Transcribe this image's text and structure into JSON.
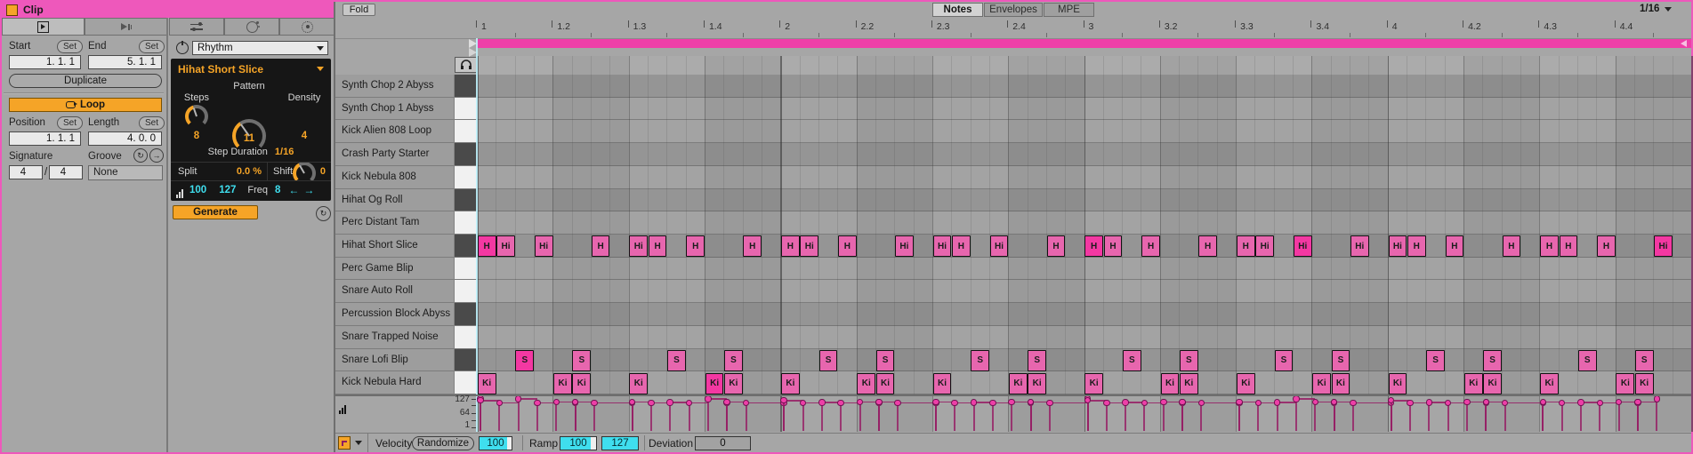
{
  "colors": {
    "orange": "#f5a427",
    "cyan": "#3fdeee",
    "pink_title": "#ee58bb",
    "pink_loop": "#ee3fa8",
    "pink_note": "#e766ae",
    "pink_note_bright": "#f338a2"
  },
  "window": {
    "title": "Clip"
  },
  "left_panel": {
    "start_label": "Start",
    "end_label": "End",
    "set_label": "Set",
    "start_value": "1. 1. 1",
    "end_value": "5. 1. 1",
    "duplicate_label": "Duplicate",
    "loop_label": "Loop",
    "position_label": "Position",
    "length_label": "Length",
    "position_value": "1. 1. 1",
    "length_value": "4. 0. 0",
    "signature_label": "Signature",
    "sig_numerator": "4",
    "sig_separator": "/",
    "sig_denominator": "4",
    "groove_label": "Groove",
    "groove_value": "None"
  },
  "device": {
    "selector_value": "Rhythm",
    "preset_name": "Hihat Short Slice",
    "pattern_label": "Pattern",
    "steps_label": "Steps",
    "steps_value": "8",
    "pattern_value": "11",
    "density_label": "Density",
    "density_value": "4",
    "step_duration_label": "Step Duration",
    "step_duration_value": "1/16",
    "split_label": "Split",
    "split_value": "0.0 %",
    "shift_label": "Shift",
    "shift_value": "0",
    "range_low": "100",
    "range_high": "127",
    "freq_label": "Freq",
    "freq_value": "8",
    "generate_label": "Generate"
  },
  "editor": {
    "fold_label": "Fold",
    "tabs": [
      {
        "label": "Notes",
        "active": true
      },
      {
        "label": "Envelopes",
        "active": false
      },
      {
        "label": "MPE",
        "active": false
      }
    ],
    "grid_resolution": "1/16",
    "ruler_labels": [
      "1",
      "1.2",
      "1.3",
      "1.4",
      "2",
      "2.2",
      "2.3",
      "2.4",
      "3",
      "3.2",
      "3.3",
      "3.4",
      "4",
      "4.2",
      "4.3",
      "4.4"
    ],
    "bars": 4,
    "tracks": [
      {
        "name": "Synth Chop 2 Abyss",
        "key": "dark"
      },
      {
        "name": "Synth Chop 1 Abyss",
        "key": "light"
      },
      {
        "name": "Kick Alien 808 Loop",
        "key": "light"
      },
      {
        "name": "Crash Party Starter",
        "key": "dark"
      },
      {
        "name": "Kick Nebula 808",
        "key": "light"
      },
      {
        "name": "Hihat Og Roll",
        "key": "dark"
      },
      {
        "name": "Perc Distant Tam",
        "key": "light"
      },
      {
        "name": "Hihat Short Slice",
        "key": "dark"
      },
      {
        "name": "Perc Game Blip",
        "key": "light"
      },
      {
        "name": "Snare Auto Roll",
        "key": "light"
      },
      {
        "name": "Percussion Block Abyss",
        "key": "dark"
      },
      {
        "name": "Snare Trapped Noise",
        "key": "light"
      },
      {
        "name": "Snare Lofi Blip",
        "key": "dark"
      },
      {
        "name": "Kick Nebula Hard",
        "key": "light"
      }
    ],
    "patterns": {
      "hihat": {
        "row": 7,
        "steps": [
          0,
          1,
          3,
          6,
          8,
          9,
          11,
          14
        ],
        "labels": [
          [
            "H",
            "Hi",
            "Hi",
            "H",
            "Hi",
            "H",
            "H",
            "H"
          ],
          [
            "H",
            "Hi",
            "H",
            "Hi",
            "Hi",
            "H",
            "Hi",
            "H"
          ],
          [
            "H",
            "H",
            "H",
            "H",
            "H",
            "Hi",
            "Hi",
            "Hi"
          ],
          [
            "Hi",
            "H",
            "H",
            "H",
            "H",
            "H",
            "H",
            "Hi"
          ]
        ],
        "velocities": [
          [
            127,
            110,
            110,
            110,
            110,
            110,
            110,
            110
          ],
          [
            110,
            110,
            110,
            110,
            110,
            110,
            110,
            110
          ],
          [
            127,
            110,
            110,
            110,
            110,
            110,
            127,
            110
          ],
          [
            110,
            110,
            110,
            110,
            110,
            110,
            110,
            127
          ]
        ]
      },
      "snare": {
        "row": 12,
        "steps": [
          2,
          5,
          10,
          13
        ],
        "label": "S",
        "velocities": [
          [
            127,
            112,
            112,
            112
          ],
          [
            112,
            112,
            112,
            112
          ],
          [
            112,
            112,
            112,
            112
          ],
          [
            112,
            112,
            112,
            112
          ]
        ]
      },
      "kick": {
        "row": 13,
        "steps": [
          0,
          4,
          5,
          8,
          12,
          13
        ],
        "label": "Ki",
        "velocities": [
          [
            120,
            114,
            114,
            114,
            127,
            114
          ],
          [
            120,
            114,
            114,
            114,
            114,
            114
          ],
          [
            120,
            114,
            114,
            114,
            114,
            114
          ],
          [
            120,
            114,
            114,
            114,
            114,
            114
          ]
        ]
      }
    },
    "velocity_scale": [
      "127",
      "64",
      "1"
    ],
    "footer": {
      "lane_label": "Velocity",
      "randomize_label": "Randomize",
      "randomize_value": "100",
      "ramp_label": "Ramp",
      "ramp_from": "100",
      "ramp_to": "127",
      "deviation_label": "Deviation",
      "deviation_value": "0"
    }
  }
}
